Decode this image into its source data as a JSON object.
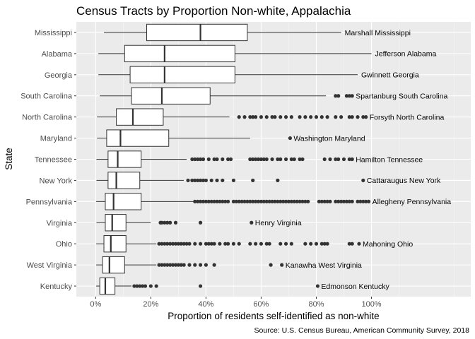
{
  "chart_data": {
    "type": "boxplot",
    "orientation": "horizontal",
    "title": "Census Tracts by Proportion Non-white, Appalachia",
    "xlabel": "Proportion of residents self-identified as non-white",
    "ylabel": "State",
    "caption": "Source: U.S. Census Bureau, American Community Survey, 2018",
    "xlim": [
      -0.07,
      1.36
    ],
    "x_ticks": [
      0,
      0.2,
      0.4,
      0.6,
      0.8,
      1.0
    ],
    "x_tick_labels": [
      "0%",
      "20%",
      "40%",
      "60%",
      "80%",
      "100%"
    ],
    "grid": true,
    "colors": {
      "panel": "#ebebeb",
      "grid_major": "#ffffff",
      "box_fill": "#ffffff",
      "box_line": "#333333",
      "point": "#333333"
    },
    "categories": [
      "Mississippi",
      "Alabama",
      "Georgia",
      "South Carolina",
      "North Carolina",
      "Maryland",
      "Tennessee",
      "New York",
      "Pennsylvania",
      "Virginia",
      "Ohio",
      "West Virginia",
      "Kentucky"
    ],
    "boxes": [
      {
        "state": "Mississippi",
        "whisker_low": 0.03,
        "q1": 0.185,
        "median": 0.38,
        "q3": 0.55,
        "whisker_high": 0.89,
        "outliers": [],
        "max_label": "Marshall  Mississippi",
        "max_value": 0.89
      },
      {
        "state": "Alabama",
        "whisker_low": 0.01,
        "q1": 0.105,
        "median": 0.25,
        "q3": 0.505,
        "whisker_high": 1.0,
        "outliers": [],
        "max_label": "Jefferson  Alabama",
        "max_value": 1.0
      },
      {
        "state": "Georgia",
        "whisker_low": 0.01,
        "q1": 0.125,
        "median": 0.25,
        "q3": 0.505,
        "whisker_high": 0.95,
        "outliers": [],
        "max_label": "Gwinnett  Georgia",
        "max_value": 0.95
      },
      {
        "state": "South Carolina",
        "whisker_low": 0.015,
        "q1": 0.13,
        "median": 0.24,
        "q3": 0.415,
        "whisker_high": 0.835,
        "outliers": [
          0.87,
          0.88,
          0.91,
          0.92,
          0.93
        ],
        "max_label": "Spartanburg  South Carolina",
        "max_value": 0.93
      },
      {
        "state": "North Carolina",
        "whisker_low": 0.005,
        "q1": 0.075,
        "median": 0.135,
        "q3": 0.245,
        "whisker_high": 0.485,
        "outliers": [
          0.52,
          0.54,
          0.56,
          0.57,
          0.58,
          0.6,
          0.62,
          0.64,
          0.65,
          0.67,
          0.69,
          0.71,
          0.74,
          0.76,
          0.78,
          0.8,
          0.82,
          0.84,
          0.87,
          0.89,
          0.92,
          0.93,
          0.95,
          0.97,
          0.98
        ],
        "max_label": "Forsyth  North Carolina",
        "max_value": 0.98
      },
      {
        "state": "Maryland",
        "whisker_low": 0.005,
        "q1": 0.04,
        "median": 0.09,
        "q3": 0.265,
        "whisker_high": 0.56,
        "outliers": [
          0.705
        ],
        "max_label": "Washington  Maryland",
        "max_value": 0.705
      },
      {
        "state": "Tennessee",
        "whisker_low": 0.003,
        "q1": 0.045,
        "median": 0.08,
        "q3": 0.165,
        "whisker_high": 0.33,
        "outliers": [
          0.35,
          0.36,
          0.37,
          0.38,
          0.39,
          0.41,
          0.43,
          0.44,
          0.46,
          0.48,
          0.49,
          0.56,
          0.57,
          0.58,
          0.59,
          0.6,
          0.61,
          0.62,
          0.64,
          0.66,
          0.67,
          0.69,
          0.71,
          0.72,
          0.74,
          0.75,
          0.83,
          0.85,
          0.87,
          0.88,
          0.9,
          0.92,
          0.93
        ],
        "max_label": "Hamilton  Tennessee",
        "max_value": 0.93
      },
      {
        "state": "New York",
        "whisker_low": 0.003,
        "q1": 0.045,
        "median": 0.075,
        "q3": 0.16,
        "whisker_high": 0.32,
        "outliers": [
          0.335,
          0.35,
          0.36,
          0.37,
          0.38,
          0.39,
          0.4,
          0.42,
          0.44,
          0.46,
          0.5,
          0.57,
          0.66,
          0.97
        ],
        "max_label": "Cattaraugus  New York",
        "max_value": 0.97
      },
      {
        "state": "Pennsylvania",
        "whisker_low": 0.002,
        "q1": 0.035,
        "median": 0.065,
        "q3": 0.165,
        "whisker_high": 0.355,
        "outliers": [
          0.36,
          0.37,
          0.38,
          0.39,
          0.4,
          0.41,
          0.42,
          0.43,
          0.44,
          0.45,
          0.46,
          0.47,
          0.48,
          0.5,
          0.51,
          0.52,
          0.53,
          0.54,
          0.55,
          0.56,
          0.57,
          0.58,
          0.59,
          0.6,
          0.61,
          0.62,
          0.63,
          0.64,
          0.65,
          0.66,
          0.67,
          0.68,
          0.69,
          0.7,
          0.71,
          0.72,
          0.73,
          0.74,
          0.75,
          0.76,
          0.77,
          0.81,
          0.82,
          0.83,
          0.84,
          0.85,
          0.87,
          0.88,
          0.89,
          0.9,
          0.91,
          0.92,
          0.93,
          0.95,
          0.96,
          0.97,
          0.98,
          0.99
        ],
        "max_label": "Allegheny  Pennsylvania",
        "max_value": 0.99
      },
      {
        "state": "Virginia",
        "whisker_low": 0.003,
        "q1": 0.035,
        "median": 0.06,
        "q3": 0.11,
        "whisker_high": 0.2,
        "outliers": [
          0.235,
          0.24,
          0.25,
          0.26,
          0.27,
          0.29,
          0.38,
          0.565
        ],
        "max_label": "Henry  Virginia",
        "max_value": 0.565
      },
      {
        "state": "Ohio",
        "whisker_low": 0.002,
        "q1": 0.03,
        "median": 0.055,
        "q3": 0.11,
        "whisker_high": 0.22,
        "outliers": [
          0.23,
          0.24,
          0.25,
          0.26,
          0.27,
          0.28,
          0.29,
          0.3,
          0.31,
          0.32,
          0.33,
          0.34,
          0.36,
          0.38,
          0.4,
          0.41,
          0.42,
          0.43,
          0.45,
          0.47,
          0.48,
          0.5,
          0.52,
          0.56,
          0.58,
          0.6,
          0.62,
          0.63,
          0.67,
          0.69,
          0.71,
          0.76,
          0.78,
          0.8,
          0.82,
          0.83,
          0.84,
          0.92,
          0.93,
          0.955
        ],
        "max_label": "Mahoning  Ohio",
        "max_value": 0.955
      },
      {
        "state": "West Virginia",
        "whisker_low": 0.002,
        "q1": 0.025,
        "median": 0.05,
        "q3": 0.105,
        "whisker_high": 0.22,
        "outliers": [
          0.23,
          0.24,
          0.25,
          0.26,
          0.27,
          0.28,
          0.29,
          0.3,
          0.31,
          0.32,
          0.34,
          0.36,
          0.38,
          0.4,
          0.43,
          0.635,
          0.675
        ],
        "max_label": "Kanawha  West Virginia",
        "max_value": 0.675
      },
      {
        "state": "Kentucky",
        "whisker_low": 0.002,
        "q1": 0.015,
        "median": 0.035,
        "q3": 0.07,
        "whisker_high": 0.13,
        "outliers": [
          0.14,
          0.15,
          0.16,
          0.17,
          0.18,
          0.2,
          0.22,
          0.38,
          0.805
        ],
        "max_label": "Edmonson  Kentucky",
        "max_value": 0.805
      }
    ]
  }
}
